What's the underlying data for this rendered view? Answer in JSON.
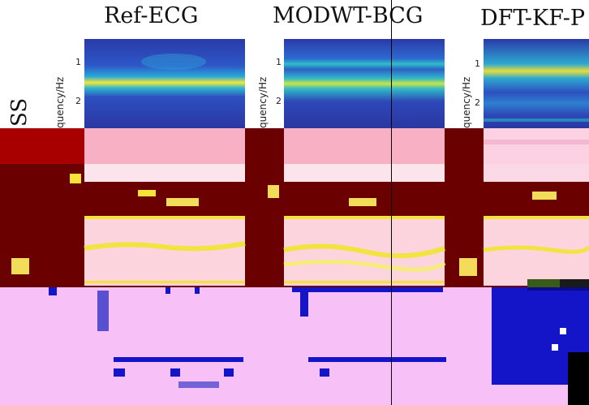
{
  "row_label": "SS",
  "columns": [
    {
      "title": "Ref-ECG",
      "ylabel": "quency/Hz"
    },
    {
      "title": "MODWT-BCG",
      "ylabel": "quency/Hz"
    },
    {
      "title": "DFT-KF-P",
      "ylabel": "quency/Hz"
    }
  ],
  "ticks": [
    "1",
    "2"
  ],
  "colors": {
    "dark_red": "#6b0000",
    "mid_red": "#a80000",
    "pink": "#f7b8c7",
    "pale_pink": "#fcd9e6",
    "violet": "#f7c0f7",
    "yellow": "#f7e23a",
    "blue": "#1a1acc",
    "spectrogram_blue": "#2b3fb0"
  }
}
